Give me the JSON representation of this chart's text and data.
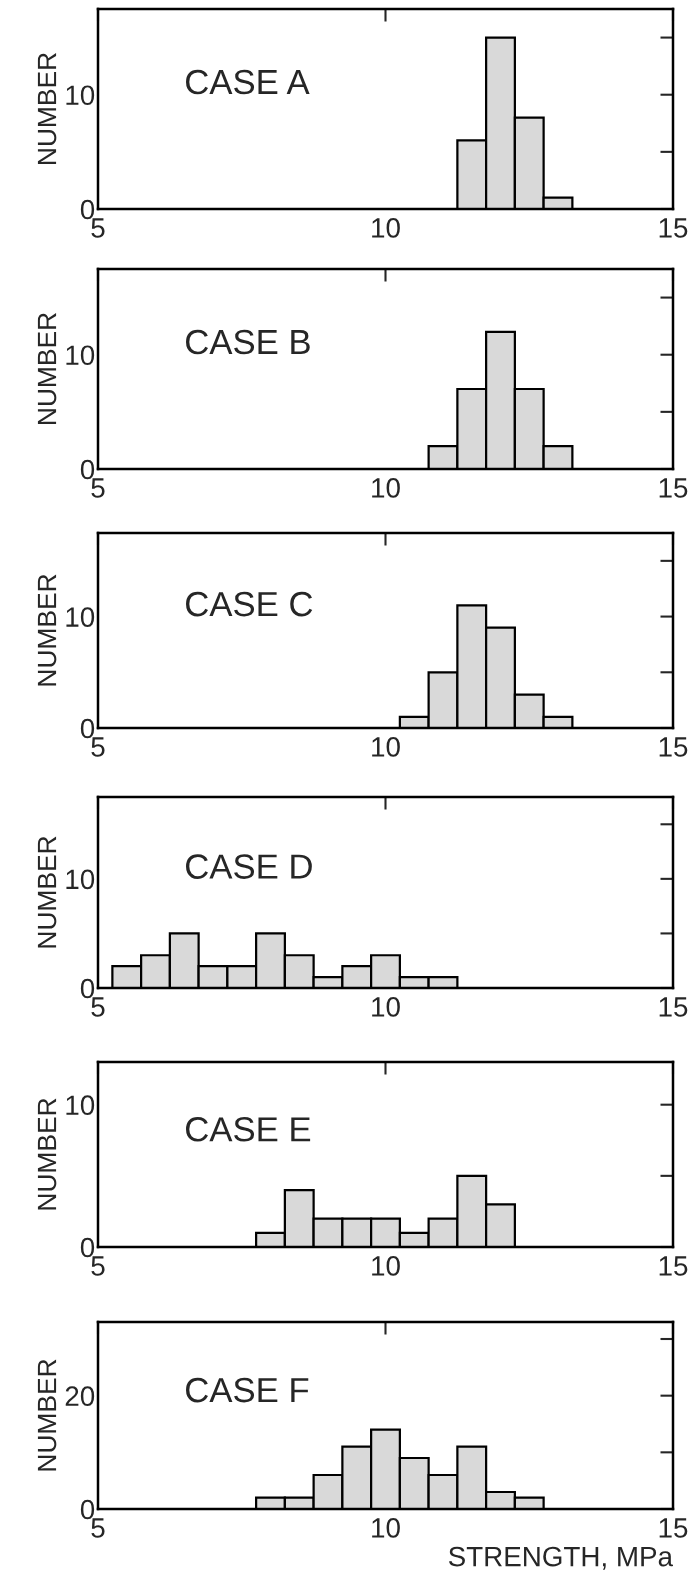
{
  "chart_data": [
    {
      "type": "histogram",
      "bins": [
        11.25,
        11.75,
        12.25,
        12.75,
        13.25
      ],
      "values": [
        6,
        15,
        8,
        1
      ],
      "color": "#d9d9d9",
      "xlim": [
        5,
        15
      ],
      "xticks": [
        5,
        10,
        15
      ],
      "ylim": [
        0,
        17.5
      ],
      "yticks": [
        0,
        {
          "value": 5,
          "label": null
        },
        10,
        {
          "value": 15,
          "label": null
        }
      ],
      "ylabel": "NUMBER",
      "annotations": [
        "CASE A"
      ]
    },
    {
      "type": "histogram",
      "bins": [
        10.75,
        11.25,
        11.75,
        12.25,
        12.75,
        13.25
      ],
      "values": [
        2,
        7,
        12,
        7,
        2
      ],
      "color": "#d9d9d9",
      "xlim": [
        5,
        15
      ],
      "xticks": [
        5,
        10,
        15
      ],
      "ylim": [
        0,
        17.5
      ],
      "yticks": [
        0,
        {
          "value": 5,
          "label": null
        },
        10,
        {
          "value": 15,
          "label": null
        }
      ],
      "ylabel": "NUMBER",
      "annotations": [
        "CASE B"
      ]
    },
    {
      "type": "histogram",
      "bins": [
        10.25,
        10.75,
        11.25,
        11.75,
        12.25,
        12.75,
        13.25
      ],
      "values": [
        1,
        5,
        11,
        9,
        3,
        1
      ],
      "color": "#d9d9d9",
      "xlim": [
        5,
        15
      ],
      "xticks": [
        5,
        10,
        15
      ],
      "ylim": [
        0,
        17.5
      ],
      "yticks": [
        0,
        {
          "value": 5,
          "label": null
        },
        10,
        {
          "value": 15,
          "label": null
        }
      ],
      "ylabel": "NUMBER",
      "annotations": [
        "CASE C"
      ]
    },
    {
      "type": "histogram",
      "bins": [
        5.25,
        5.75,
        6.25,
        6.75,
        7.25,
        7.75,
        8.25,
        8.75,
        9.25,
        9.75,
        10.25,
        10.75,
        11.25
      ],
      "values": [
        2,
        3,
        5,
        2,
        2,
        5,
        3,
        1,
        2,
        3,
        1,
        1
      ],
      "color": "#d9d9d9",
      "xlim": [
        5,
        15
      ],
      "xticks": [
        5,
        10,
        15
      ],
      "ylim": [
        0,
        17.5
      ],
      "yticks": [
        0,
        {
          "value": 5,
          "label": null
        },
        10,
        {
          "value": 15,
          "label": null
        }
      ],
      "ylabel": "NUMBER",
      "annotations": [
        "CASE D"
      ]
    },
    {
      "type": "histogram",
      "bins": [
        7.75,
        8.25,
        8.75,
        9.25,
        9.75,
        10.25,
        10.75,
        11.25,
        11.75,
        12.25
      ],
      "values": [
        1,
        4,
        2,
        2,
        2,
        1,
        2,
        5,
        3
      ],
      "color": "#d9d9d9",
      "xlim": [
        5,
        15
      ],
      "xticks": [
        5,
        10,
        15
      ],
      "ylim": [
        0,
        13
      ],
      "yticks": [
        0,
        {
          "value": 5,
          "label": null
        },
        10
      ],
      "ylabel": "NUMBER",
      "annotations": [
        "CASE E"
      ]
    },
    {
      "type": "histogram",
      "bins": [
        7.75,
        8.25,
        8.75,
        9.25,
        9.75,
        10.25,
        10.75,
        11.25,
        11.75,
        12.25,
        12.75
      ],
      "values": [
        2,
        2,
        6,
        11,
        14,
        9,
        6,
        11,
        3,
        2
      ],
      "color": "#d9d9d9",
      "xlim": [
        5,
        15
      ],
      "xticks": [
        5,
        10,
        15
      ],
      "ylim": [
        0,
        33
      ],
      "yticks": [
        0,
        {
          "value": 10,
          "label": null
        },
        20,
        {
          "value": 30,
          "label": null
        }
      ],
      "ylabel": "NUMBER",
      "xlabel": "STRENGTH, MPa",
      "annotations": [
        "CASE F"
      ]
    }
  ]
}
